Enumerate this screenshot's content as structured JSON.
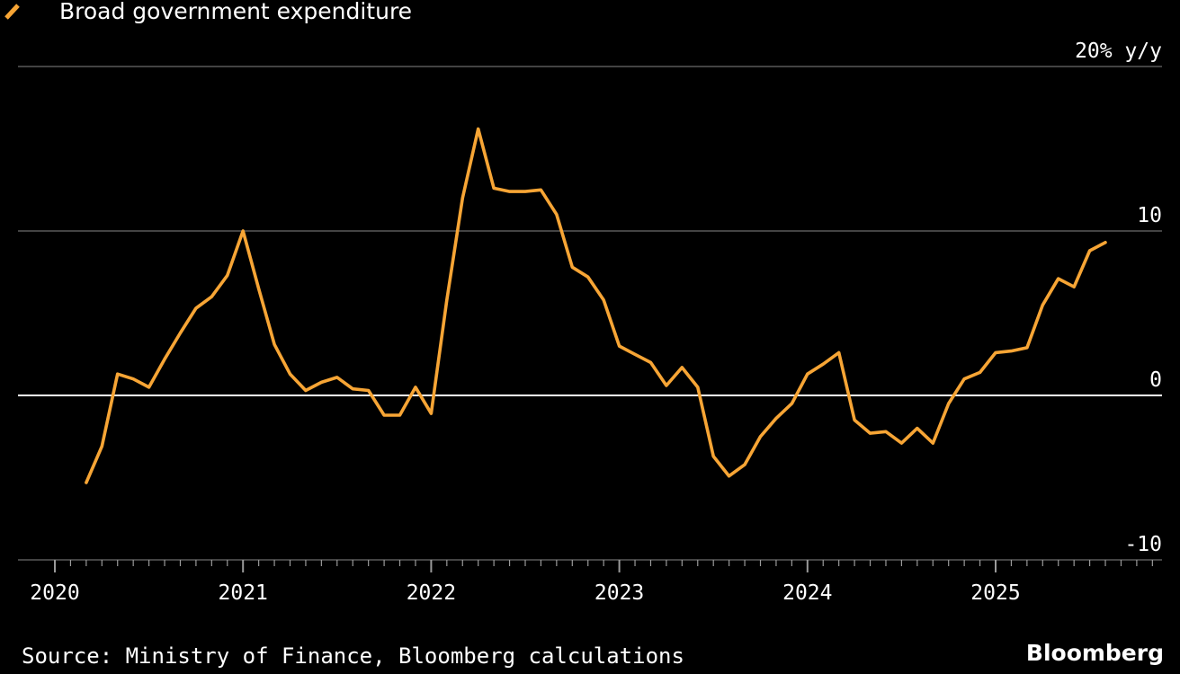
{
  "chart_data": {
    "type": "line",
    "title": "",
    "series": [
      {
        "name": "Broad government expenditure",
        "color": "#F7A535",
        "points": [
          [
            "2020-03",
            -5.3
          ],
          [
            "2020-04",
            -3.1
          ],
          [
            "2020-05",
            1.3
          ],
          [
            "2020-06",
            1.0
          ],
          [
            "2020-07",
            0.5
          ],
          [
            "2020-08",
            2.2
          ],
          [
            "2020-09",
            3.8
          ],
          [
            "2020-10",
            5.3
          ],
          [
            "2020-11",
            6.0
          ],
          [
            "2020-12",
            7.3
          ],
          [
            "2021-01",
            10.0
          ],
          [
            "2021-02",
            6.5
          ],
          [
            "2021-03",
            3.1
          ],
          [
            "2021-04",
            1.3
          ],
          [
            "2021-05",
            0.3
          ],
          [
            "2021-06",
            0.8
          ],
          [
            "2021-07",
            1.1
          ],
          [
            "2021-08",
            0.4
          ],
          [
            "2021-09",
            0.3
          ],
          [
            "2021-10",
            -1.2
          ],
          [
            "2021-11",
            -1.2
          ],
          [
            "2021-12",
            0.5
          ],
          [
            "2022-01",
            -1.1
          ],
          [
            "2022-02",
            5.8
          ],
          [
            "2022-03",
            12.0
          ],
          [
            "2022-04",
            16.2
          ],
          [
            "2022-05",
            12.6
          ],
          [
            "2022-06",
            12.4
          ],
          [
            "2022-07",
            12.4
          ],
          [
            "2022-08",
            12.5
          ],
          [
            "2022-09",
            11.0
          ],
          [
            "2022-10",
            7.8
          ],
          [
            "2022-11",
            7.2
          ],
          [
            "2022-12",
            5.8
          ],
          [
            "2023-01",
            3.0
          ],
          [
            "2023-02",
            2.5
          ],
          [
            "2023-03",
            2.0
          ],
          [
            "2023-04",
            0.6
          ],
          [
            "2023-05",
            1.7
          ],
          [
            "2023-06",
            0.5
          ],
          [
            "2023-07",
            -3.7
          ],
          [
            "2023-08",
            -4.9
          ],
          [
            "2023-09",
            -4.2
          ],
          [
            "2023-10",
            -2.5
          ],
          [
            "2023-11",
            -1.4
          ],
          [
            "2023-12",
            -0.5
          ],
          [
            "2024-01",
            1.3
          ],
          [
            "2024-02",
            1.9
          ],
          [
            "2024-03",
            2.6
          ],
          [
            "2024-04",
            -1.5
          ],
          [
            "2024-05",
            -2.3
          ],
          [
            "2024-06",
            -2.2
          ],
          [
            "2024-07",
            -2.9
          ],
          [
            "2024-08",
            -2.0
          ],
          [
            "2024-09",
            -2.9
          ],
          [
            "2024-10",
            -0.5
          ],
          [
            "2024-11",
            1.0
          ],
          [
            "2024-12",
            1.4
          ],
          [
            "2025-01",
            2.6
          ],
          [
            "2025-02",
            2.7
          ],
          [
            "2025-03",
            2.9
          ],
          [
            "2025-04",
            5.5
          ],
          [
            "2025-05",
            7.1
          ],
          [
            "2025-06",
            6.6
          ],
          [
            "2025-07",
            8.8
          ],
          [
            "2025-08",
            9.3
          ]
        ]
      }
    ],
    "y_ticks": [
      {
        "value": 20,
        "label": "20% y/y"
      },
      {
        "value": 10,
        "label": "10"
      },
      {
        "value": 0,
        "label": "0"
      },
      {
        "value": -10,
        "label": "-10"
      }
    ],
    "x_ticks": [
      {
        "value": "2020-01",
        "label": "2020"
      },
      {
        "value": "2021-01",
        "label": "2021"
      },
      {
        "value": "2022-01",
        "label": "2022"
      },
      {
        "value": "2023-01",
        "label": "2023"
      },
      {
        "value": "2024-01",
        "label": "2024"
      },
      {
        "value": "2025-01",
        "label": "2025"
      }
    ],
    "xlim": [
      "2020-01",
      "2025-12"
    ],
    "ylim": [
      -10,
      20
    ],
    "xlabel": "",
    "ylabel": "",
    "grid": true,
    "legend_position": "top-left",
    "source": "Source: Ministry of Finance, Bloomberg calculations",
    "brand": "Bloomberg"
  }
}
